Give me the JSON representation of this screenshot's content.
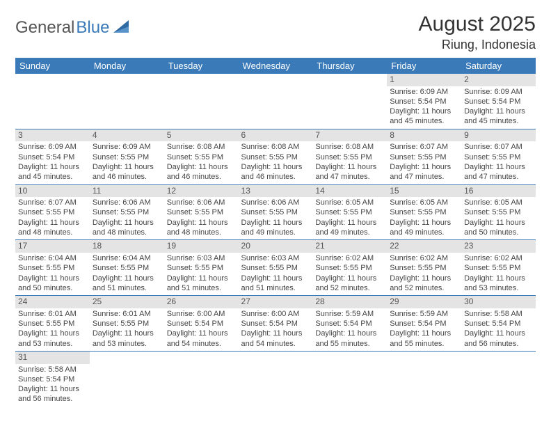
{
  "logo": {
    "general": "General",
    "blue": "Blue"
  },
  "title": "August 2025",
  "location": "Riung, Indonesia",
  "day_headers": [
    "Sunday",
    "Monday",
    "Tuesday",
    "Wednesday",
    "Thursday",
    "Friday",
    "Saturday"
  ],
  "colors": {
    "header_bg": "#3a7ab8",
    "header_text": "#ffffff",
    "daynum_bg": "#e4e4e4",
    "row_divider": "#3a7ab8",
    "text": "#444444"
  },
  "weeks": [
    [
      null,
      null,
      null,
      null,
      null,
      {
        "n": "1",
        "sr": "Sunrise: 6:09 AM",
        "ss": "Sunset: 5:54 PM",
        "dl": "Daylight: 11 hours and 45 minutes."
      },
      {
        "n": "2",
        "sr": "Sunrise: 6:09 AM",
        "ss": "Sunset: 5:54 PM",
        "dl": "Daylight: 11 hours and 45 minutes."
      }
    ],
    [
      {
        "n": "3",
        "sr": "Sunrise: 6:09 AM",
        "ss": "Sunset: 5:54 PM",
        "dl": "Daylight: 11 hours and 45 minutes."
      },
      {
        "n": "4",
        "sr": "Sunrise: 6:09 AM",
        "ss": "Sunset: 5:55 PM",
        "dl": "Daylight: 11 hours and 46 minutes."
      },
      {
        "n": "5",
        "sr": "Sunrise: 6:08 AM",
        "ss": "Sunset: 5:55 PM",
        "dl": "Daylight: 11 hours and 46 minutes."
      },
      {
        "n": "6",
        "sr": "Sunrise: 6:08 AM",
        "ss": "Sunset: 5:55 PM",
        "dl": "Daylight: 11 hours and 46 minutes."
      },
      {
        "n": "7",
        "sr": "Sunrise: 6:08 AM",
        "ss": "Sunset: 5:55 PM",
        "dl": "Daylight: 11 hours and 47 minutes."
      },
      {
        "n": "8",
        "sr": "Sunrise: 6:07 AM",
        "ss": "Sunset: 5:55 PM",
        "dl": "Daylight: 11 hours and 47 minutes."
      },
      {
        "n": "9",
        "sr": "Sunrise: 6:07 AM",
        "ss": "Sunset: 5:55 PM",
        "dl": "Daylight: 11 hours and 47 minutes."
      }
    ],
    [
      {
        "n": "10",
        "sr": "Sunrise: 6:07 AM",
        "ss": "Sunset: 5:55 PM",
        "dl": "Daylight: 11 hours and 48 minutes."
      },
      {
        "n": "11",
        "sr": "Sunrise: 6:06 AM",
        "ss": "Sunset: 5:55 PM",
        "dl": "Daylight: 11 hours and 48 minutes."
      },
      {
        "n": "12",
        "sr": "Sunrise: 6:06 AM",
        "ss": "Sunset: 5:55 PM",
        "dl": "Daylight: 11 hours and 48 minutes."
      },
      {
        "n": "13",
        "sr": "Sunrise: 6:06 AM",
        "ss": "Sunset: 5:55 PM",
        "dl": "Daylight: 11 hours and 49 minutes."
      },
      {
        "n": "14",
        "sr": "Sunrise: 6:05 AM",
        "ss": "Sunset: 5:55 PM",
        "dl": "Daylight: 11 hours and 49 minutes."
      },
      {
        "n": "15",
        "sr": "Sunrise: 6:05 AM",
        "ss": "Sunset: 5:55 PM",
        "dl": "Daylight: 11 hours and 49 minutes."
      },
      {
        "n": "16",
        "sr": "Sunrise: 6:05 AM",
        "ss": "Sunset: 5:55 PM",
        "dl": "Daylight: 11 hours and 50 minutes."
      }
    ],
    [
      {
        "n": "17",
        "sr": "Sunrise: 6:04 AM",
        "ss": "Sunset: 5:55 PM",
        "dl": "Daylight: 11 hours and 50 minutes."
      },
      {
        "n": "18",
        "sr": "Sunrise: 6:04 AM",
        "ss": "Sunset: 5:55 PM",
        "dl": "Daylight: 11 hours and 51 minutes."
      },
      {
        "n": "19",
        "sr": "Sunrise: 6:03 AM",
        "ss": "Sunset: 5:55 PM",
        "dl": "Daylight: 11 hours and 51 minutes."
      },
      {
        "n": "20",
        "sr": "Sunrise: 6:03 AM",
        "ss": "Sunset: 5:55 PM",
        "dl": "Daylight: 11 hours and 51 minutes."
      },
      {
        "n": "21",
        "sr": "Sunrise: 6:02 AM",
        "ss": "Sunset: 5:55 PM",
        "dl": "Daylight: 11 hours and 52 minutes."
      },
      {
        "n": "22",
        "sr": "Sunrise: 6:02 AM",
        "ss": "Sunset: 5:55 PM",
        "dl": "Daylight: 11 hours and 52 minutes."
      },
      {
        "n": "23",
        "sr": "Sunrise: 6:02 AM",
        "ss": "Sunset: 5:55 PM",
        "dl": "Daylight: 11 hours and 53 minutes."
      }
    ],
    [
      {
        "n": "24",
        "sr": "Sunrise: 6:01 AM",
        "ss": "Sunset: 5:55 PM",
        "dl": "Daylight: 11 hours and 53 minutes."
      },
      {
        "n": "25",
        "sr": "Sunrise: 6:01 AM",
        "ss": "Sunset: 5:55 PM",
        "dl": "Daylight: 11 hours and 53 minutes."
      },
      {
        "n": "26",
        "sr": "Sunrise: 6:00 AM",
        "ss": "Sunset: 5:54 PM",
        "dl": "Daylight: 11 hours and 54 minutes."
      },
      {
        "n": "27",
        "sr": "Sunrise: 6:00 AM",
        "ss": "Sunset: 5:54 PM",
        "dl": "Daylight: 11 hours and 54 minutes."
      },
      {
        "n": "28",
        "sr": "Sunrise: 5:59 AM",
        "ss": "Sunset: 5:54 PM",
        "dl": "Daylight: 11 hours and 55 minutes."
      },
      {
        "n": "29",
        "sr": "Sunrise: 5:59 AM",
        "ss": "Sunset: 5:54 PM",
        "dl": "Daylight: 11 hours and 55 minutes."
      },
      {
        "n": "30",
        "sr": "Sunrise: 5:58 AM",
        "ss": "Sunset: 5:54 PM",
        "dl": "Daylight: 11 hours and 56 minutes."
      }
    ],
    [
      {
        "n": "31",
        "sr": "Sunrise: 5:58 AM",
        "ss": "Sunset: 5:54 PM",
        "dl": "Daylight: 11 hours and 56 minutes."
      },
      null,
      null,
      null,
      null,
      null,
      null
    ]
  ]
}
